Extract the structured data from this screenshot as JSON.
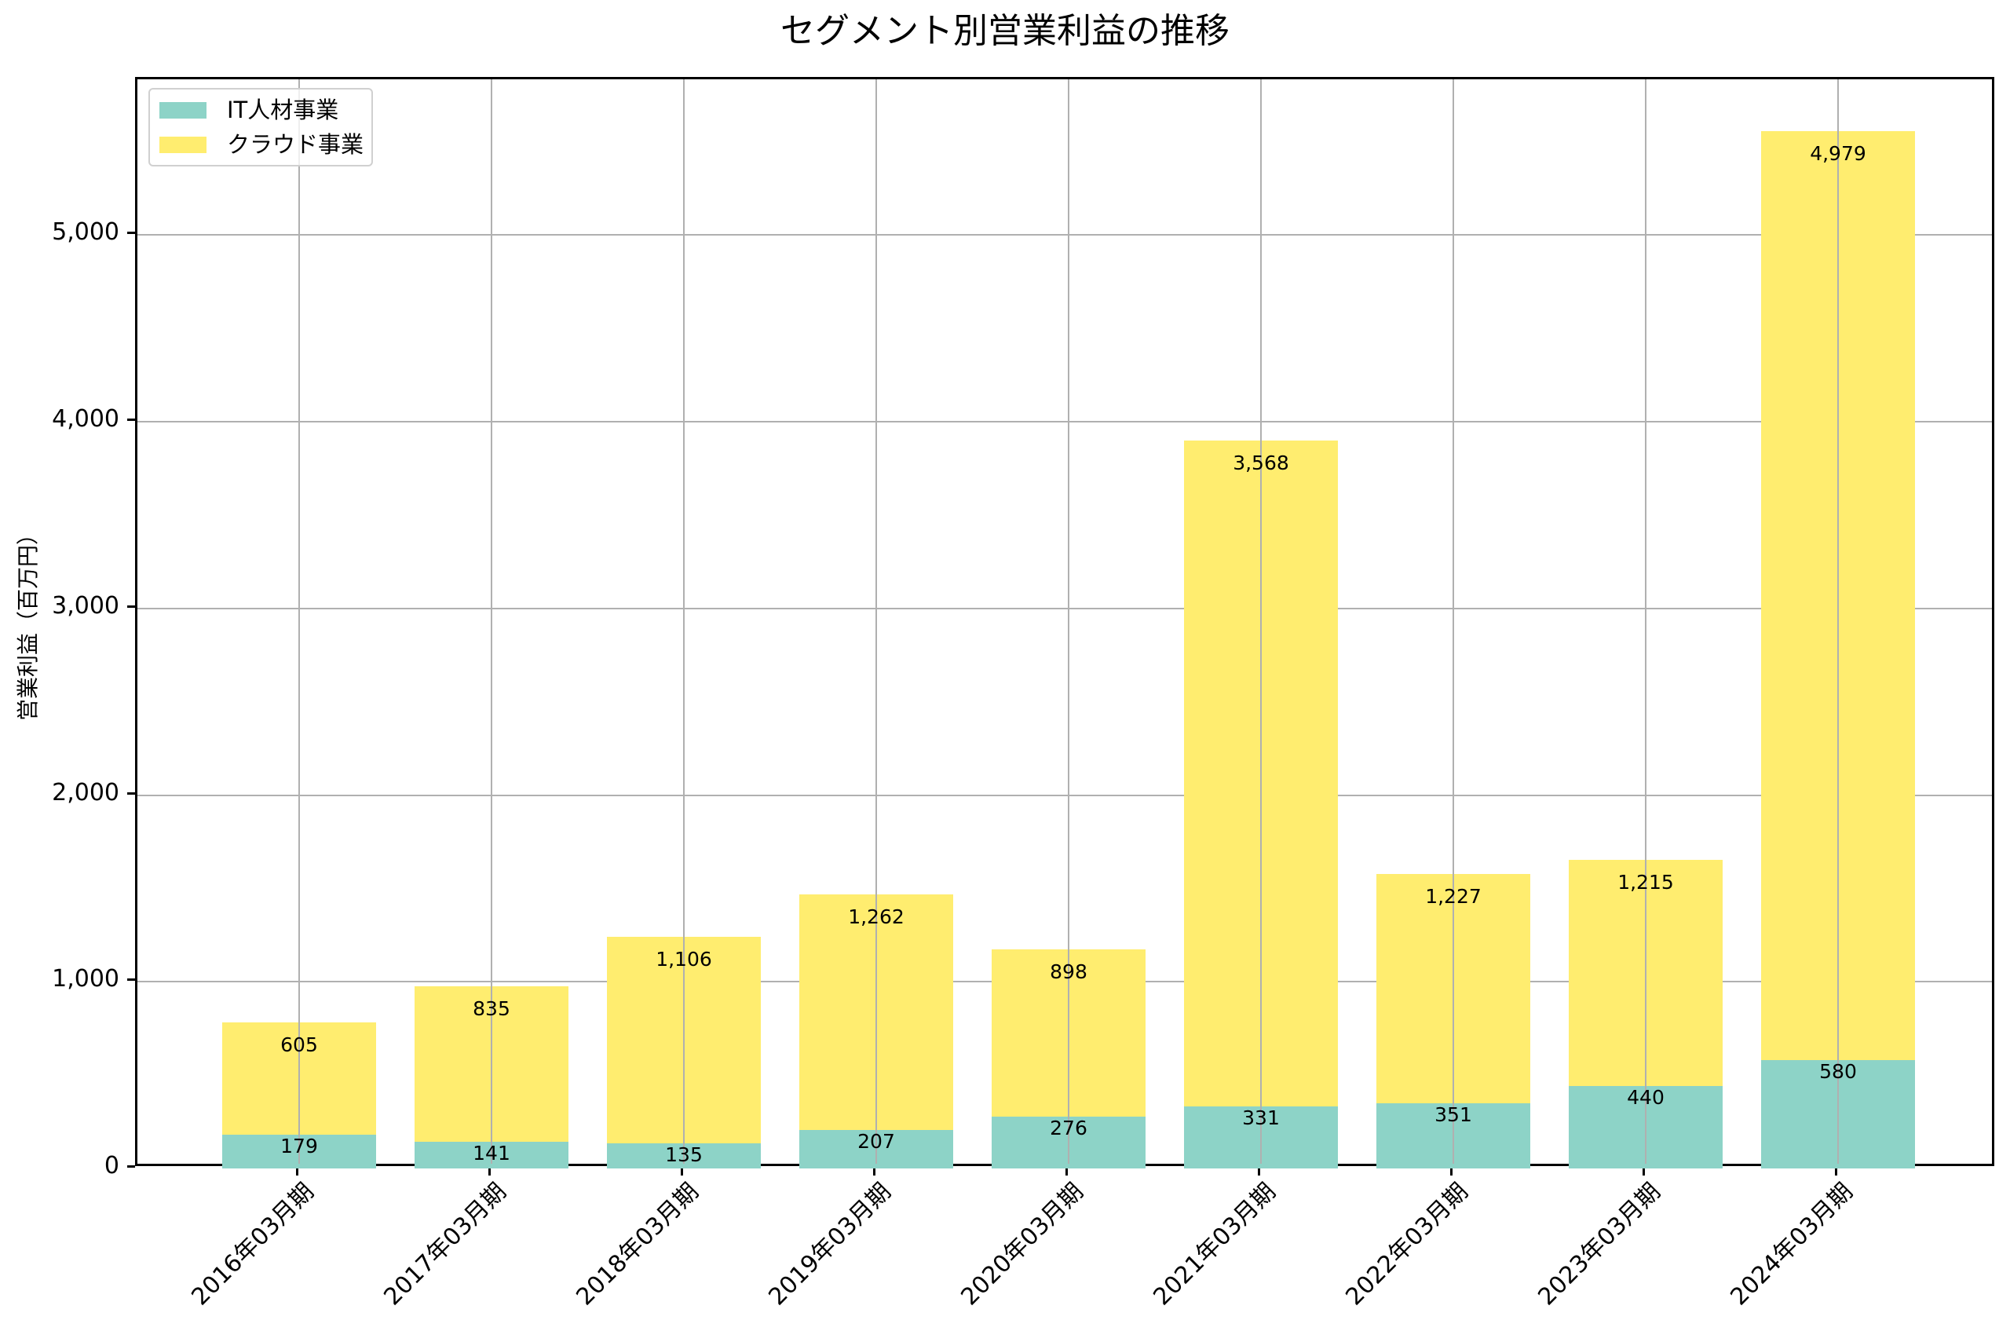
{
  "title": "セグメント別営業利益の推移",
  "y_axis": {
    "label": "営業利益（百万円）",
    "ticks": [
      "0",
      "1,000",
      "2,000",
      "3,000",
      "4,000",
      "5,000"
    ]
  },
  "legend": {
    "items": [
      {
        "label": "IT人材事業",
        "color": "#8dd3c7"
      },
      {
        "label": "クラウド事業",
        "color": "#ffed6f"
      }
    ]
  },
  "x_axis": {
    "labels": [
      "2016年03月期",
      "2017年03月期",
      "2018年03月期",
      "2019年03月期",
      "2020年03月期",
      "2021年03月期",
      "2022年03月期",
      "2023年03月期",
      "2024年03月期"
    ]
  },
  "bars": [
    {
      "period": "2016年03月期",
      "it": 179,
      "cloud": 605,
      "it_label": "179",
      "cloud_label": "605"
    },
    {
      "period": "2017年03月期",
      "it": 141,
      "cloud": 835,
      "it_label": "141",
      "cloud_label": "835"
    },
    {
      "period": "2018年03月期",
      "it": 135,
      "cloud": 1106,
      "it_label": "135",
      "cloud_label": "1,106"
    },
    {
      "period": "2019年03月期",
      "it": 207,
      "cloud": 1262,
      "it_label": "207",
      "cloud_label": "1,262"
    },
    {
      "period": "2020年03月期",
      "it": 276,
      "cloud": 898,
      "it_label": "276",
      "cloud_label": "898"
    },
    {
      "period": "2021年03月期",
      "it": 331,
      "cloud": 3568,
      "it_label": "331",
      "cloud_label": "3,568"
    },
    {
      "period": "2022年03月期",
      "it": 351,
      "cloud": 1227,
      "it_label": "351",
      "cloud_label": "1,227"
    },
    {
      "period": "2023年03月期",
      "it": 440,
      "cloud": 1215,
      "it_label": "440",
      "cloud_label": "1,215"
    },
    {
      "period": "2024年03月期",
      "it": 580,
      "cloud": 4979,
      "it_label": "580",
      "cloud_label": "4,979"
    }
  ],
  "chart_data": {
    "type": "bar",
    "stacked": true,
    "title": "セグメント別営業利益の推移",
    "xlabel": "",
    "ylabel": "営業利益（百万円）",
    "categories": [
      "2016年03月期",
      "2017年03月期",
      "2018年03月期",
      "2019年03月期",
      "2020年03月期",
      "2021年03月期",
      "2022年03月期",
      "2023年03月期",
      "2024年03月期"
    ],
    "series": [
      {
        "name": "IT人材事業",
        "color": "#8dd3c7",
        "values": [
          179,
          141,
          135,
          207,
          276,
          331,
          351,
          440,
          580
        ]
      },
      {
        "name": "クラウド事業",
        "color": "#ffed6f",
        "values": [
          605,
          835,
          1106,
          1262,
          898,
          3568,
          1227,
          1215,
          4979
        ]
      }
    ],
    "ylim": [
      0,
      5835
    ],
    "yticks": [
      0,
      1000,
      2000,
      3000,
      4000,
      5000
    ],
    "grid": true,
    "legend_position": "upper left",
    "x_tick_rotation": 45
  }
}
